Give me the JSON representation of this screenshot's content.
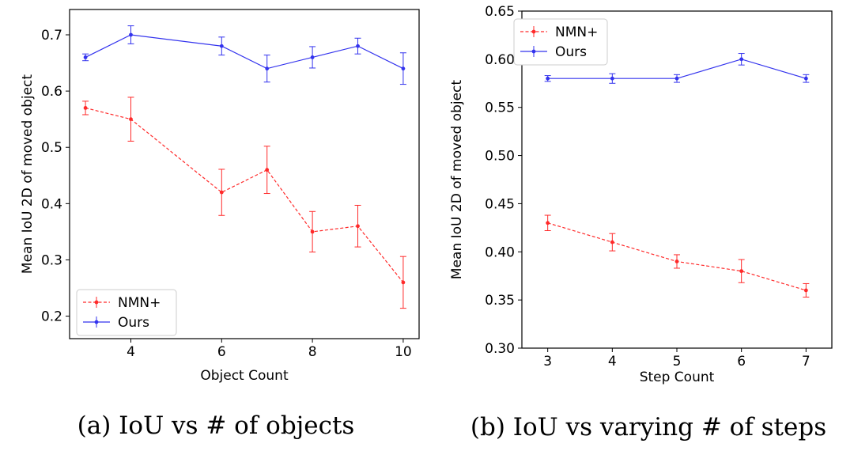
{
  "colors": {
    "nmn": "#ff2a2a",
    "ours": "#3333ee"
  },
  "chart_data": [
    {
      "type": "line",
      "caption": "(a) IoU vs # of objects",
      "xlabel": "Object Count",
      "ylabel": "Mean IoU 2D of moved object",
      "xlim": [
        2.65,
        10.35
      ],
      "ylim": [
        0.16,
        0.745
      ],
      "xticks": [
        4,
        6,
        8,
        10
      ],
      "yticks": [
        0.2,
        0.3,
        0.4,
        0.5,
        0.6,
        0.7
      ],
      "legend": "lower-left",
      "series": [
        {
          "name": "NMN+",
          "style": "dashed",
          "x": [
            3,
            4,
            6,
            7,
            8,
            9,
            10
          ],
          "y": [
            0.57,
            0.55,
            0.42,
            0.46,
            0.35,
            0.36,
            0.26
          ],
          "err": [
            0.012,
            0.039,
            0.041,
            0.042,
            0.036,
            0.037,
            0.046
          ]
        },
        {
          "name": "Ours",
          "style": "solid",
          "x": [
            3,
            4,
            6,
            7,
            8,
            9,
            10
          ],
          "y": [
            0.66,
            0.7,
            0.68,
            0.64,
            0.66,
            0.68,
            0.64
          ],
          "err": [
            0.006,
            0.016,
            0.016,
            0.024,
            0.019,
            0.014,
            0.028
          ]
        }
      ]
    },
    {
      "type": "line",
      "caption": "(b) IoU vs varying # of steps",
      "xlabel": "Step Count",
      "ylabel": "Mean IoU 2D of moved object",
      "xlim": [
        2.6,
        7.4
      ],
      "ylim": [
        0.3,
        0.65
      ],
      "xticks": [
        3,
        4,
        5,
        6,
        7
      ],
      "yticks": [
        0.3,
        0.35,
        0.4,
        0.45,
        0.5,
        0.55,
        0.6,
        0.65
      ],
      "legend": "upper-left",
      "series": [
        {
          "name": "NMN+",
          "style": "dashed",
          "x": [
            3,
            4,
            5,
            6,
            7
          ],
          "y": [
            0.43,
            0.41,
            0.39,
            0.38,
            0.36
          ],
          "err": [
            0.008,
            0.009,
            0.007,
            0.012,
            0.007
          ]
        },
        {
          "name": "Ours",
          "style": "solid",
          "x": [
            3,
            4,
            5,
            6,
            7
          ],
          "y": [
            0.58,
            0.58,
            0.58,
            0.6,
            0.58
          ],
          "err": [
            0.003,
            0.005,
            0.004,
            0.006,
            0.004
          ]
        }
      ]
    }
  ]
}
